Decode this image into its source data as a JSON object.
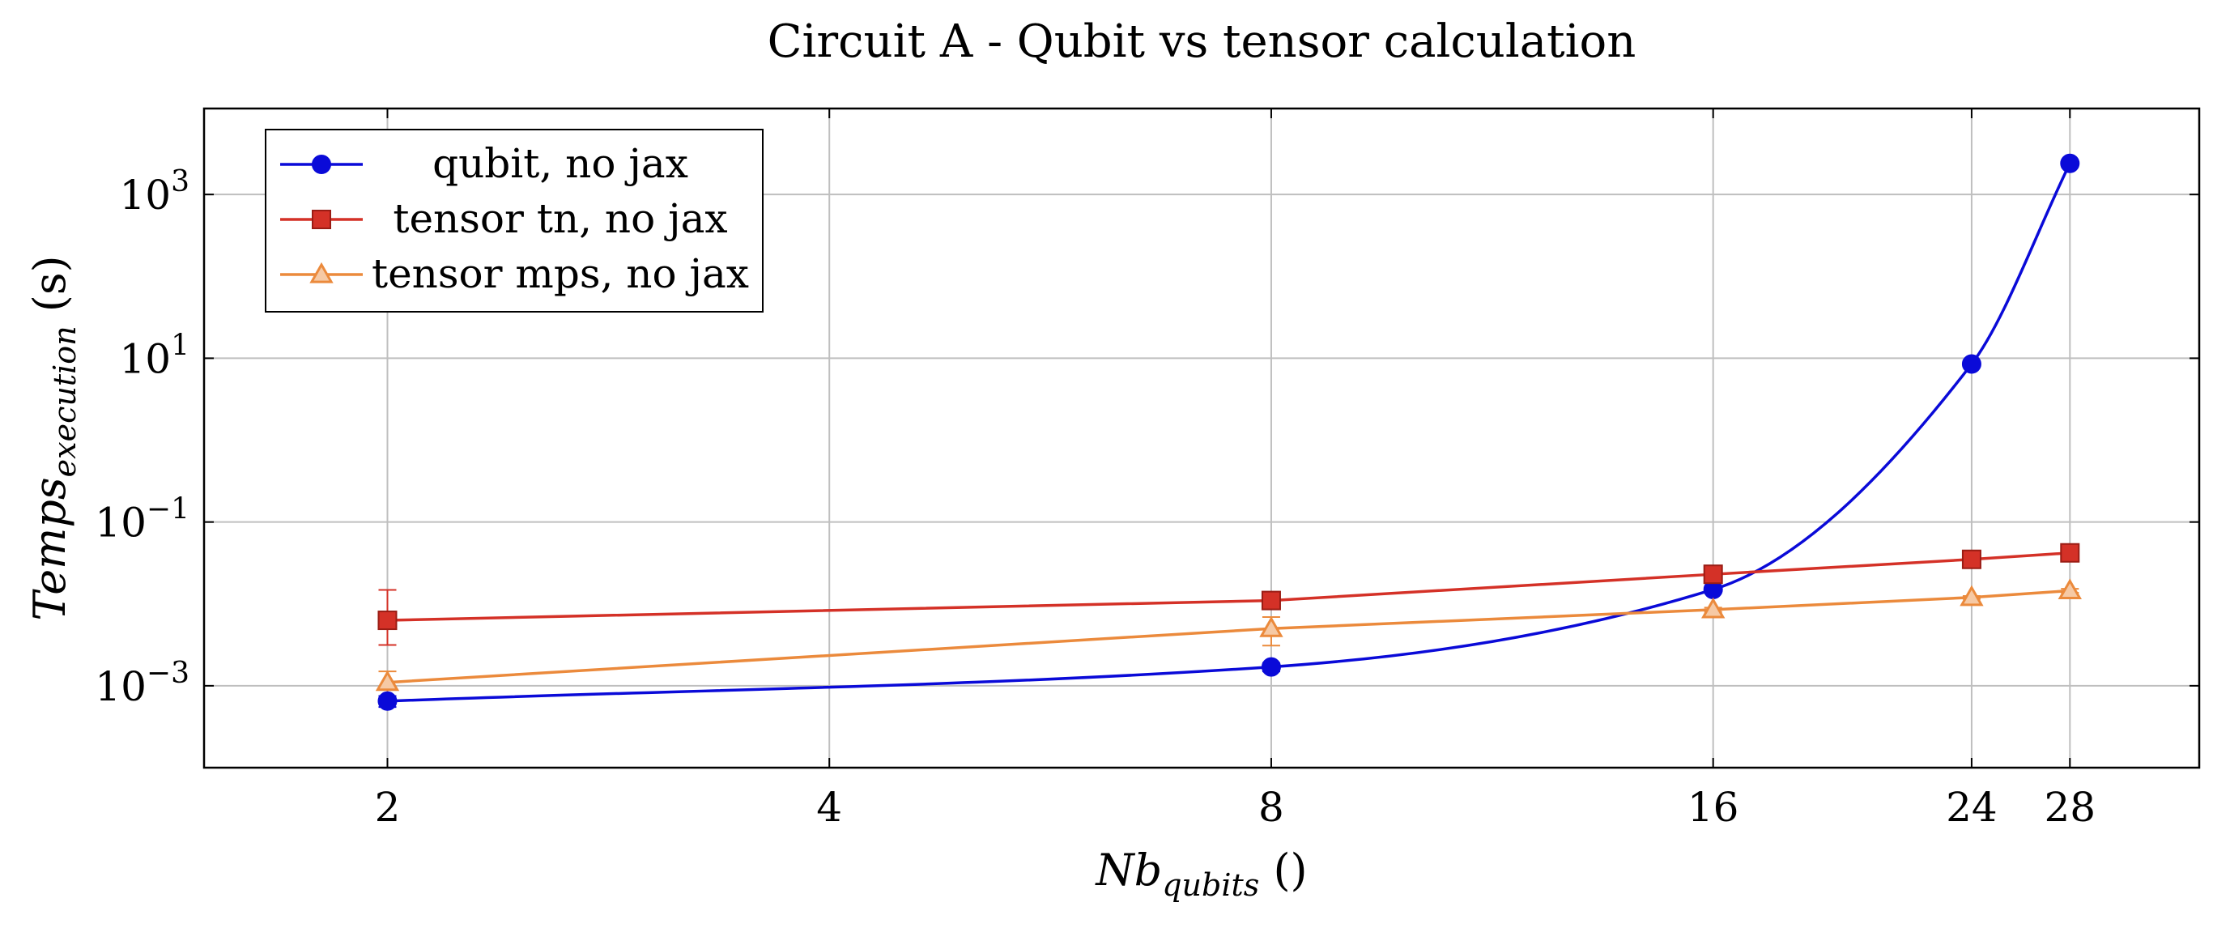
{
  "chart_data": {
    "type": "line",
    "title": "Circuit A - Qubit vs tensor calculation",
    "xlabel": {
      "main": "Nb",
      "sub": "qubits",
      "unit": " ()"
    },
    "ylabel": {
      "main": "Temps",
      "sub": "execution",
      "unit": " (s)"
    },
    "x_scale": "log2",
    "y_scale": "log10",
    "x_ticks": [
      2,
      4,
      8,
      16,
      24,
      28
    ],
    "x_tick_labels": [
      "2",
      "4",
      "8",
      "16",
      "24",
      "28"
    ],
    "y_ticks": [
      0.001,
      0.1,
      10,
      1000
    ],
    "y_tick_labels": [
      {
        "base": "10",
        "exp": "−3"
      },
      {
        "base": "10",
        "exp": "−1"
      },
      {
        "base": "10",
        "exp": "1"
      },
      {
        "base": "10",
        "exp": "3"
      }
    ],
    "grid": true,
    "legend_position": "top-left",
    "series": [
      {
        "name": "qubit, no jax",
        "color": "#0a0ad8",
        "marker": "circle",
        "smooth": true,
        "x": [
          2,
          8,
          16,
          24,
          28
        ],
        "y": [
          0.00065,
          0.0017,
          0.015,
          8.5,
          2400
        ],
        "yerr": [
          0.0001,
          0.0002,
          0.001,
          0.5,
          100
        ]
      },
      {
        "name": "tensor tn, no jax",
        "color": "#d43127",
        "marker": "square",
        "smooth": false,
        "x": [
          2,
          8,
          16,
          24,
          28
        ],
        "y": [
          0.0063,
          0.011,
          0.023,
          0.035,
          0.042
        ],
        "yerr": [
          0.0085,
          0.001,
          0.001,
          0.001,
          0.002
        ]
      },
      {
        "name": "tensor mps, no jax",
        "color": "#eb8a3c",
        "marker": "triangle",
        "smooth": false,
        "x": [
          2,
          8,
          16,
          24,
          28
        ],
        "y": [
          0.0011,
          0.005,
          0.0085,
          0.012,
          0.0145
        ],
        "yerr": [
          0.0004,
          0.0019,
          0.0005,
          0.0005,
          0.0008
        ]
      }
    ]
  }
}
